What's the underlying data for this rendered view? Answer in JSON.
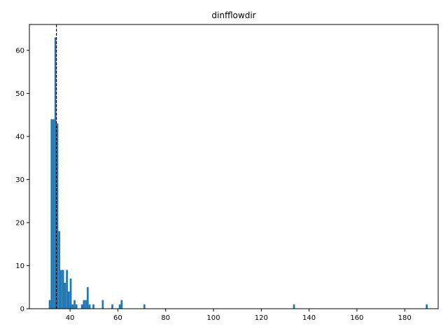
{
  "chart_data": {
    "type": "bar",
    "title": "dinfflowdir",
    "xlabel": "",
    "ylabel": "",
    "xlim": [
      23,
      194
    ],
    "ylim": [
      0,
      66
    ],
    "bin_width": 0.79,
    "xticks": [
      40,
      60,
      80,
      100,
      120,
      140,
      160,
      180
    ],
    "yticks": [
      0,
      10,
      20,
      30,
      40,
      50,
      60
    ],
    "bar_color": "#1f77b4",
    "bins": [
      {
        "x": 31.1,
        "count": 2
      },
      {
        "x": 31.9,
        "count": 44
      },
      {
        "x": 32.7,
        "count": 44
      },
      {
        "x": 33.5,
        "count": 63
      },
      {
        "x": 34.3,
        "count": 43
      },
      {
        "x": 35.1,
        "count": 18
      },
      {
        "x": 35.9,
        "count": 9
      },
      {
        "x": 36.7,
        "count": 9
      },
      {
        "x": 37.5,
        "count": 6
      },
      {
        "x": 38.3,
        "count": 9
      },
      {
        "x": 39.1,
        "count": 4
      },
      {
        "x": 39.9,
        "count": 7
      },
      {
        "x": 40.7,
        "count": 1
      },
      {
        "x": 41.5,
        "count": 2
      },
      {
        "x": 42.3,
        "count": 1
      },
      {
        "x": 44.6,
        "count": 1
      },
      {
        "x": 45.4,
        "count": 2
      },
      {
        "x": 46.2,
        "count": 2
      },
      {
        "x": 47.0,
        "count": 5
      },
      {
        "x": 47.8,
        "count": 1
      },
      {
        "x": 49.4,
        "count": 1
      },
      {
        "x": 53.3,
        "count": 2
      },
      {
        "x": 57.3,
        "count": 1
      },
      {
        "x": 60.4,
        "count": 1
      },
      {
        "x": 61.2,
        "count": 2
      },
      {
        "x": 70.7,
        "count": 1
      },
      {
        "x": 133.3,
        "count": 1
      },
      {
        "x": 188.8,
        "count": 1
      }
    ],
    "reference_line": {
      "x": 34.3,
      "style": "dashed",
      "color": "#000000"
    }
  }
}
